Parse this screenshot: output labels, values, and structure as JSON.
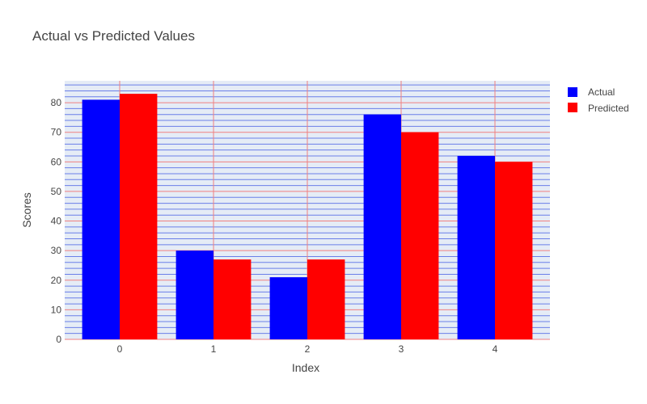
{
  "chart_data": {
    "type": "bar",
    "title": "Actual vs Predicted Values",
    "xlabel": "Index",
    "ylabel": "Scores",
    "categories": [
      "0",
      "1",
      "2",
      "3",
      "4"
    ],
    "series": [
      {
        "name": "Actual",
        "values": [
          81,
          30,
          21,
          76,
          62
        ],
        "color": "#0000ff"
      },
      {
        "name": "Predicted",
        "values": [
          83,
          27,
          27,
          70,
          60
        ],
        "color": "#ff0000"
      }
    ],
    "ylim": [
      0,
      87.4
    ],
    "yticks": [
      0,
      10,
      20,
      30,
      40,
      50,
      60,
      70,
      80
    ],
    "ytick_labels": [
      "0",
      "10",
      "20",
      "30",
      "40",
      "50",
      "60",
      "70",
      "80"
    ],
    "y_minor_step": 2,
    "grid": true,
    "legend_position": "top-right",
    "colors": {
      "plot_background": "#e5ecf6",
      "major_gridline": "#f08080",
      "minor_gridline": "#6a7fe8",
      "text": "#444444"
    }
  }
}
